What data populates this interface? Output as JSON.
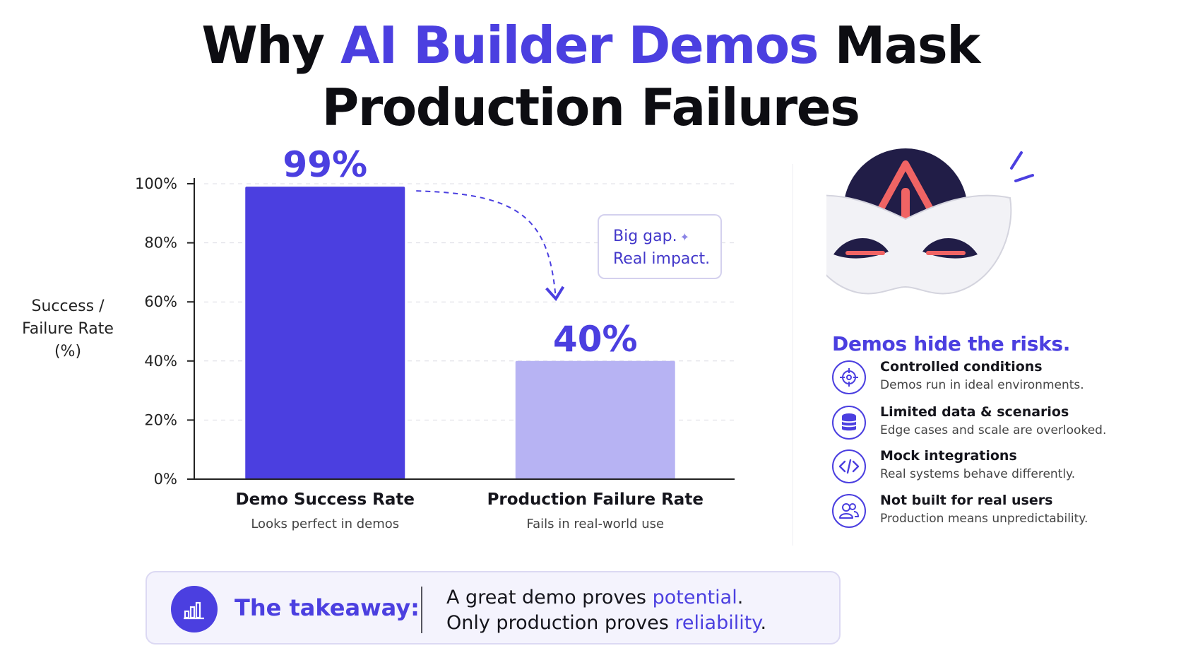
{
  "title": {
    "line1_pre": "Why ",
    "line1_highlight": "AI Builder Demos",
    "line1_post": " Mask",
    "line2": "Production Failures"
  },
  "chart_data": {
    "type": "bar",
    "ylabel_lines": [
      "Success /",
      "Failure Rate",
      "(%)"
    ],
    "ylim": [
      0,
      100
    ],
    "yticks": [
      0,
      20,
      40,
      60,
      80,
      100
    ],
    "ytick_labels": [
      "0%",
      "20%",
      "40%",
      "60%",
      "80%",
      "100%"
    ],
    "grid": "horizontal dashed",
    "categories": [
      "Demo Success Rate",
      "Production Failure Rate"
    ],
    "subtitles": [
      "Looks perfect in demos",
      "Fails in real-world use"
    ],
    "values": [
      99,
      40
    ],
    "value_labels": [
      "99%",
      "40%"
    ],
    "colors": [
      "#4b3fe0",
      "#b7b3f3"
    ]
  },
  "annotation": {
    "line1": "Big gap.",
    "line2": "Real impact.",
    "sparkle": "✦"
  },
  "sidebar": {
    "title": "Demos hide the risks.",
    "items": [
      {
        "icon": "target-icon",
        "title": "Controlled conditions",
        "desc": "Demos run in ideal environments."
      },
      {
        "icon": "database-icon",
        "title": "Limited data & scenarios",
        "desc": "Edge cases and scale are overlooked."
      },
      {
        "icon": "code-icon",
        "title": "Mock integrations",
        "desc": "Real systems behave differently."
      },
      {
        "icon": "users-icon",
        "title": "Not built for real users",
        "desc": "Production means unpredictability."
      }
    ]
  },
  "takeaway": {
    "label": "The takeaway:",
    "l1_pre": "A great demo proves ",
    "l1_hl": "potential",
    "l1_post": ".",
    "l2_pre": "Only production proves ",
    "l2_hl": "reliability",
    "l2_post": "."
  },
  "colors": {
    "accent": "#4b3fe0",
    "accent_light": "#b7b3f3",
    "mask_warning": "#f06464",
    "mask_bg": "#211d47"
  }
}
